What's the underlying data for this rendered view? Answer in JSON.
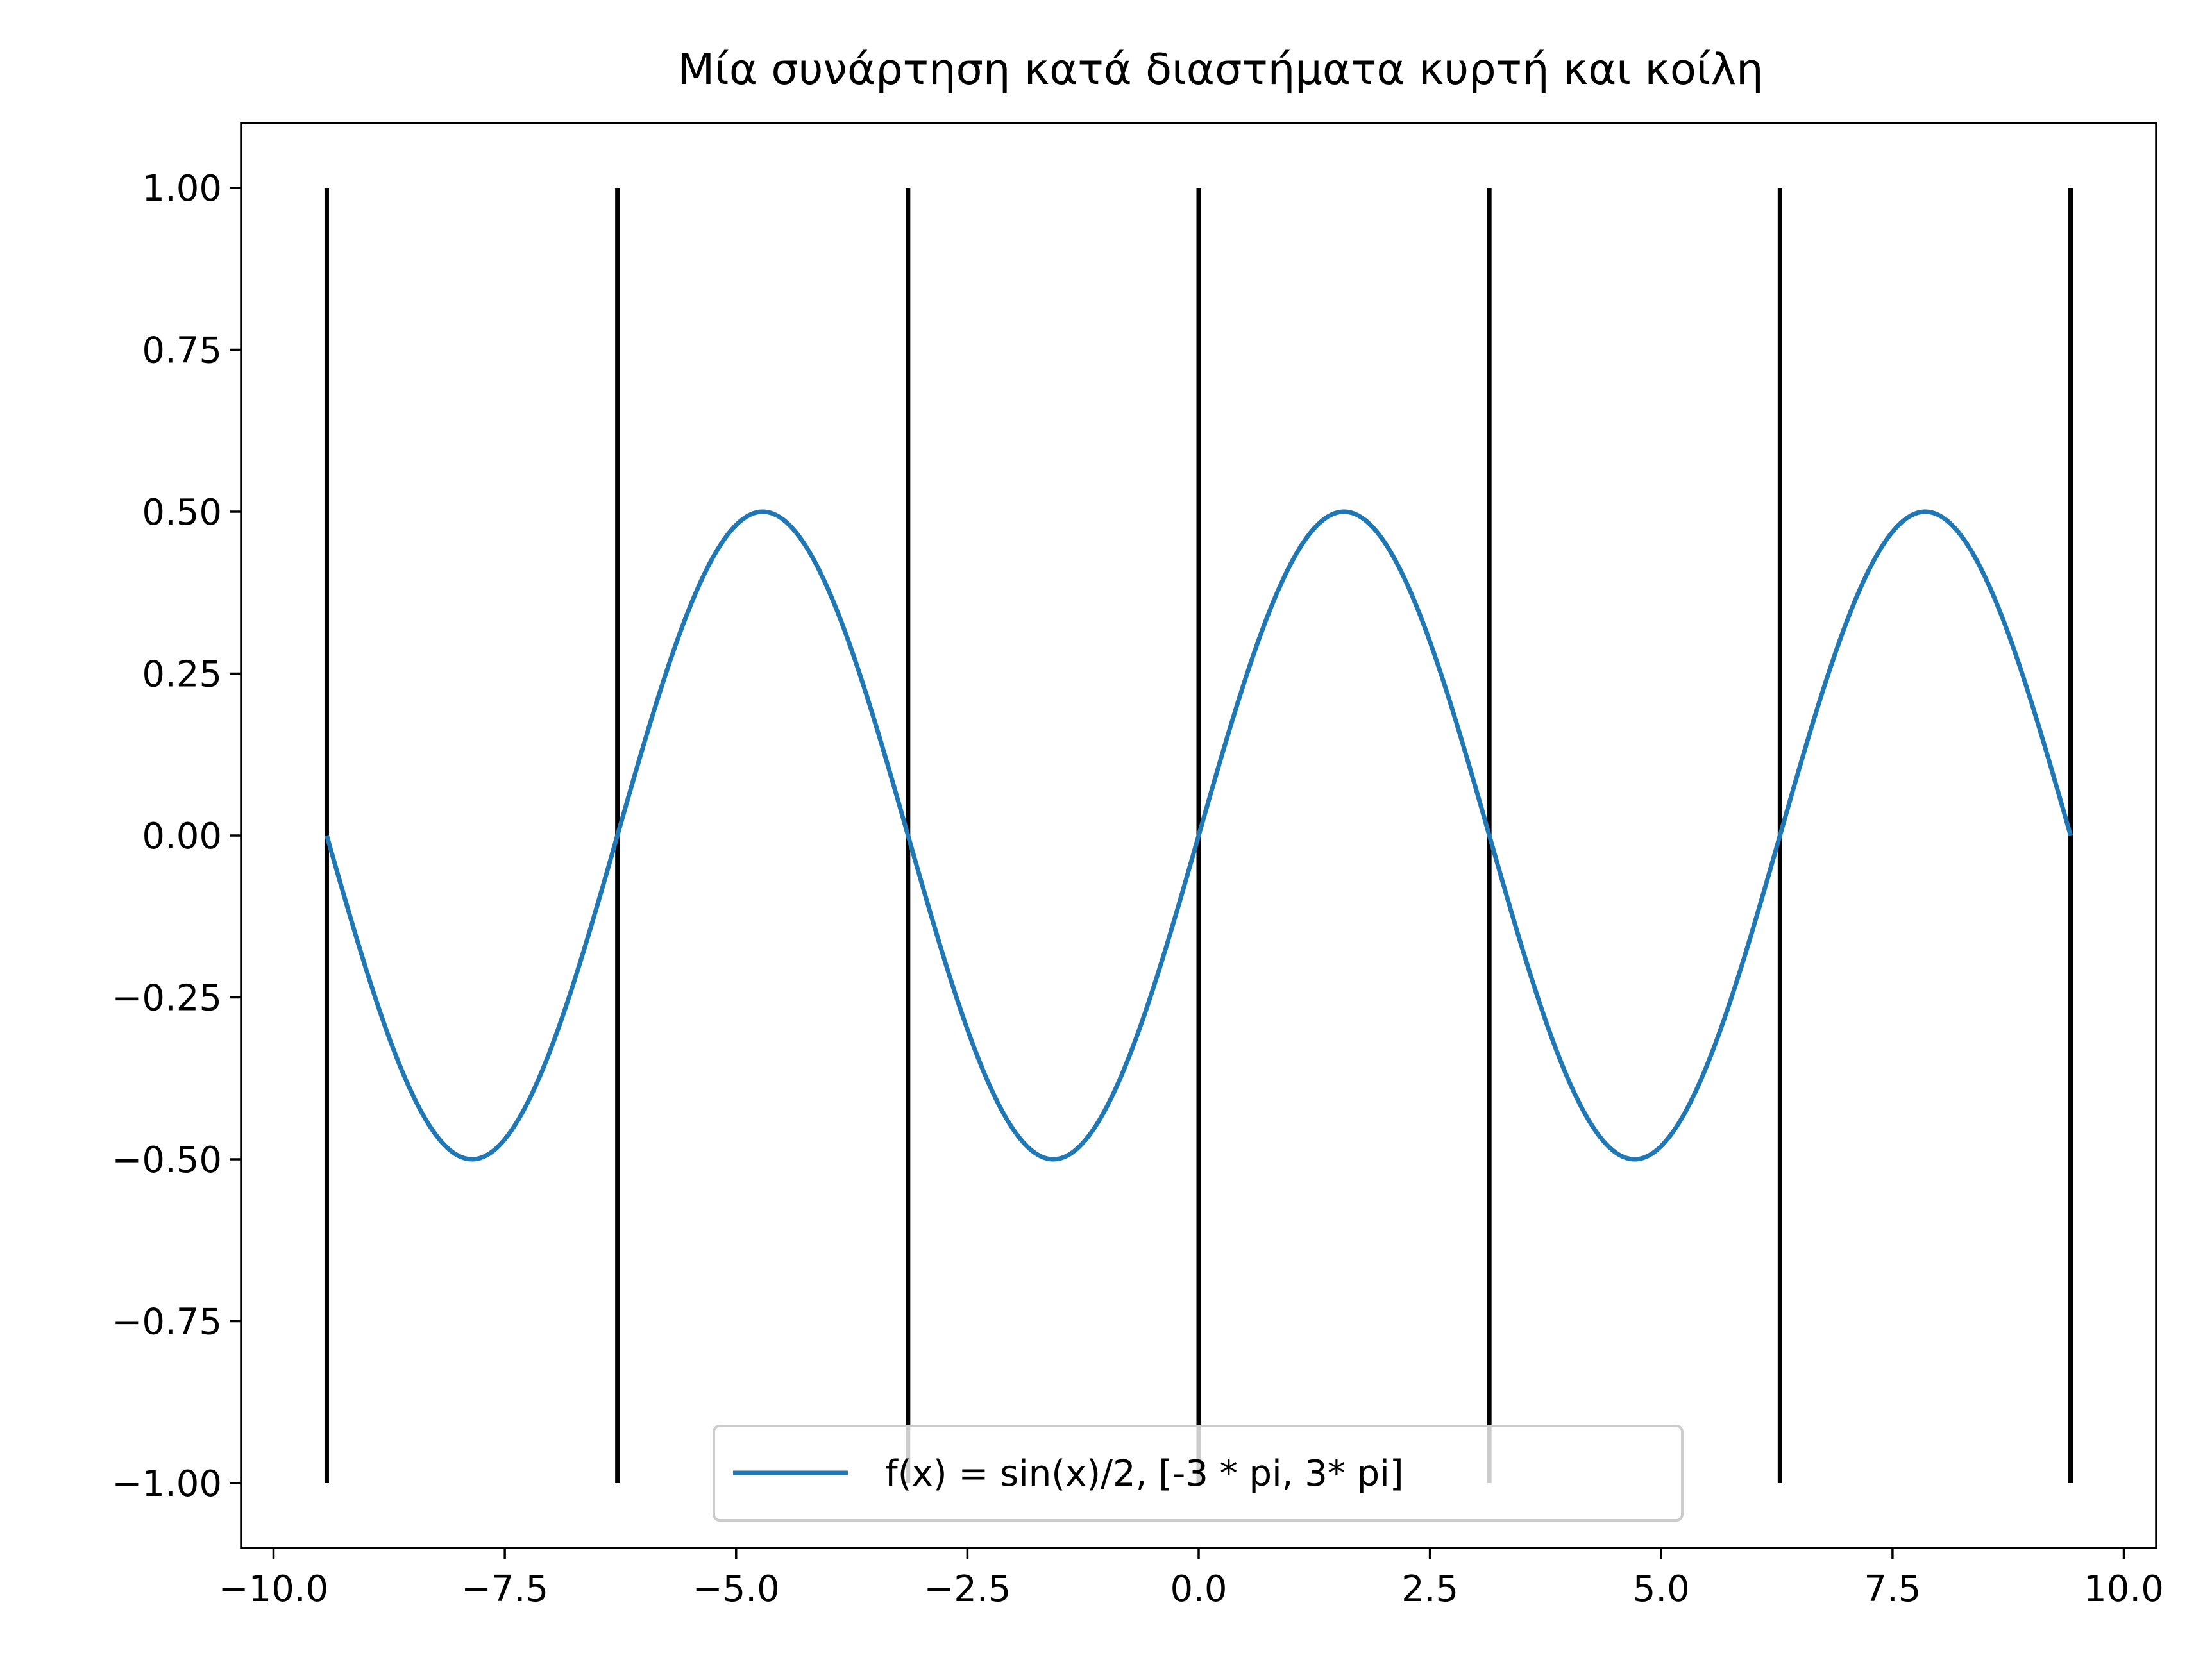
{
  "chart_data": {
    "type": "line",
    "title": "Μία συνάρτηση κατά διαστήματα κυρτή και κοίλη",
    "xlabel": "",
    "ylabel": "",
    "xlim": [
      -10.35,
      10.35
    ],
    "ylim": [
      -1.1,
      1.1
    ],
    "x_ticks": [
      -10.0,
      -7.5,
      -5.0,
      -2.5,
      0.0,
      2.5,
      5.0,
      7.5,
      10.0
    ],
    "x_tick_labels": [
      "−10.0",
      "−7.5",
      "−5.0",
      "−2.5",
      "0.0",
      "2.5",
      "5.0",
      "7.5",
      "10.0"
    ],
    "y_ticks": [
      -1.0,
      -0.75,
      -0.5,
      -0.25,
      0.0,
      0.25,
      0.5,
      0.75,
      1.0
    ],
    "y_tick_labels": [
      "−1.00",
      "−0.75",
      "−0.50",
      "−0.25",
      "0.00",
      "0.25",
      "0.50",
      "0.75",
      "1.00"
    ],
    "grid": false,
    "legend_position": "lower center",
    "series": [
      {
        "name": "f(x) = sin(x)/2, [-3 * pi, 3* pi]",
        "function": "sin(x)/2",
        "x_range": [
          -9.42478,
          9.42478
        ],
        "color": "#1f77b4"
      }
    ],
    "vertical_lines": {
      "x": [
        -9.42478,
        -6.28319,
        -3.14159,
        0.0,
        3.14159,
        6.28319,
        9.42478
      ],
      "ymin": -1.0,
      "ymax": 1.0,
      "color": "#000000"
    }
  }
}
